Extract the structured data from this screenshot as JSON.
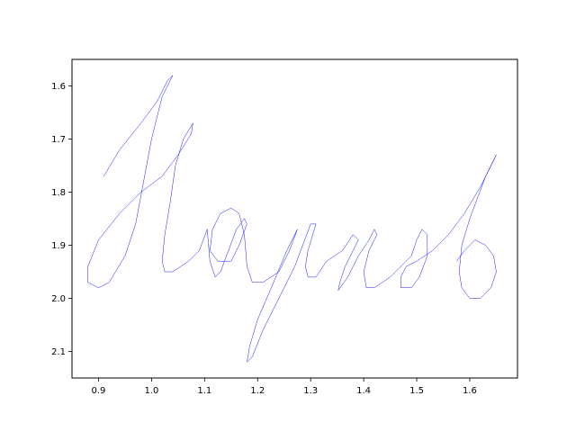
{
  "chart_data": {
    "type": "line",
    "title": "",
    "xlabel": "",
    "ylabel": "",
    "xlim": [
      0.85,
      1.69
    ],
    "ylim": [
      2.15,
      1.55
    ],
    "y_inverted": true,
    "grid": false,
    "legend": "none",
    "x_ticks": [
      "0.9",
      "1.0",
      "1.1",
      "1.2",
      "1.3",
      "1.4",
      "1.5",
      "1.6"
    ],
    "y_ticks": [
      "1.6",
      "1.7",
      "1.8",
      "1.9",
      "2.0",
      "2.1"
    ],
    "series": [
      {
        "color": "#0000ff",
        "strokes": [
          [
            [
              0.91,
              1.77
            ],
            [
              0.94,
              1.72
            ],
            [
              0.98,
              1.67
            ],
            [
              1.01,
              1.63
            ],
            [
              1.03,
              1.59
            ],
            [
              1.04,
              1.58
            ],
            [
              1.02,
              1.62
            ],
            [
              1.0,
              1.7
            ],
            [
              0.985,
              1.78
            ],
            [
              0.97,
              1.86
            ],
            [
              0.95,
              1.92
            ],
            [
              0.92,
              1.97
            ],
            [
              0.9,
              1.98
            ],
            [
              0.88,
              1.97
            ],
            [
              0.88,
              1.94
            ],
            [
              0.9,
              1.89
            ],
            [
              0.94,
              1.84
            ],
            [
              0.98,
              1.8
            ],
            [
              1.02,
              1.77
            ],
            [
              1.05,
              1.73
            ],
            [
              1.075,
              1.69
            ],
            [
              1.078,
              1.67
            ],
            [
              1.06,
              1.7
            ],
            [
              1.045,
              1.75
            ],
            [
              1.035,
              1.82
            ],
            [
              1.025,
              1.88
            ],
            [
              1.02,
              1.93
            ],
            [
              1.025,
              1.95
            ],
            [
              1.04,
              1.95
            ],
            [
              1.07,
              1.93
            ],
            [
              1.09,
              1.91
            ],
            [
              1.105,
              1.87
            ]
          ],
          [
            [
              1.105,
              1.87
            ],
            [
              1.11,
              1.93
            ],
            [
              1.12,
              1.96
            ],
            [
              1.13,
              1.95
            ],
            [
              1.145,
              1.91
            ],
            [
              1.16,
              1.87
            ],
            [
              1.175,
              1.85
            ],
            [
              1.18,
              1.86
            ],
            [
              1.165,
              1.9
            ],
            [
              1.15,
              1.93
            ],
            [
              1.125,
              1.93
            ],
            [
              1.11,
              1.91
            ],
            [
              1.115,
              1.87
            ],
            [
              1.13,
              1.84
            ],
            [
              1.15,
              1.83
            ],
            [
              1.165,
              1.84
            ],
            [
              1.175,
              1.88
            ],
            [
              1.18,
              1.94
            ],
            [
              1.19,
              1.97
            ],
            [
              1.21,
              1.97
            ],
            [
              1.24,
              1.95
            ],
            [
              1.26,
              1.91
            ],
            [
              1.275,
              1.87
            ]
          ],
          [
            [
              1.275,
              1.87
            ],
            [
              1.255,
              1.91
            ],
            [
              1.23,
              1.97
            ],
            [
              1.2,
              2.04
            ],
            [
              1.185,
              2.09
            ],
            [
              1.18,
              2.12
            ],
            [
              1.19,
              2.11
            ],
            [
              1.21,
              2.06
            ],
            [
              1.24,
              2.0
            ],
            [
              1.27,
              1.94
            ],
            [
              1.3,
              1.86
            ],
            [
              1.31,
              1.86
            ],
            [
              1.295,
              1.91
            ],
            [
              1.29,
              1.94
            ],
            [
              1.295,
              1.96
            ],
            [
              1.31,
              1.96
            ],
            [
              1.33,
              1.93
            ]
          ],
          [
            [
              1.33,
              1.93
            ],
            [
              1.36,
              1.91
            ],
            [
              1.38,
              1.88
            ],
            [
              1.39,
              1.89
            ],
            [
              1.38,
              1.91
            ],
            [
              1.365,
              1.94
            ],
            [
              1.355,
              1.97
            ],
            [
              1.352,
              1.985
            ],
            [
              1.37,
              1.96
            ],
            [
              1.39,
              1.92
            ],
            [
              1.41,
              1.89
            ],
            [
              1.42,
              1.87
            ],
            [
              1.425,
              1.88
            ],
            [
              1.41,
              1.91
            ],
            [
              1.4,
              1.95
            ],
            [
              1.405,
              1.98
            ],
            [
              1.42,
              1.98
            ],
            [
              1.45,
              1.96
            ],
            [
              1.47,
              1.94
            ]
          ],
          [
            [
              1.47,
              1.94
            ],
            [
              1.49,
              1.92
            ],
            [
              1.5,
              1.89
            ],
            [
              1.51,
              1.87
            ],
            [
              1.52,
              1.88
            ],
            [
              1.52,
              1.92
            ],
            [
              1.505,
              1.96
            ],
            [
              1.49,
              1.98
            ],
            [
              1.47,
              1.98
            ],
            [
              1.47,
              1.96
            ],
            [
              1.48,
              1.94
            ],
            [
              1.5,
              1.93
            ],
            [
              1.53,
              1.91
            ],
            [
              1.56,
              1.88
            ],
            [
              1.59,
              1.84
            ],
            [
              1.62,
              1.79
            ],
            [
              1.64,
              1.75
            ],
            [
              1.65,
              1.73
            ],
            [
              1.645,
              1.74
            ],
            [
              1.63,
              1.77
            ],
            [
              1.615,
              1.81
            ],
            [
              1.6,
              1.85
            ],
            [
              1.585,
              1.9
            ],
            [
              1.58,
              1.95
            ],
            [
              1.585,
              1.98
            ],
            [
              1.6,
              2.0
            ],
            [
              1.62,
              2.0
            ],
            [
              1.64,
              1.98
            ],
            [
              1.65,
              1.95
            ],
            [
              1.645,
              1.92
            ],
            [
              1.63,
              1.9
            ],
            [
              1.61,
              1.89
            ],
            [
              1.59,
              1.91
            ],
            [
              1.575,
              1.93
            ]
          ]
        ]
      }
    ]
  }
}
